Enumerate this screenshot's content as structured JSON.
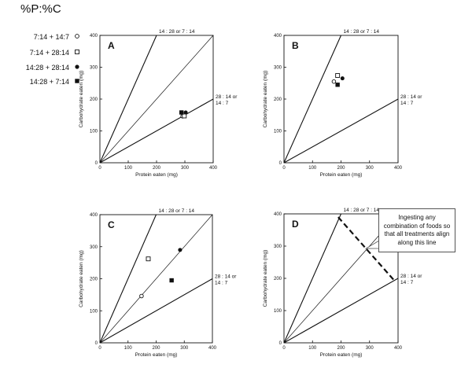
{
  "legend": {
    "title": "%P:%C",
    "items": [
      {
        "label": "7:14 + 14:7",
        "marker": "open-circle"
      },
      {
        "label": "7:14 + 28:14",
        "marker": "open-square"
      },
      {
        "label": "14:28 + 28:14",
        "marker": "filled-circle"
      },
      {
        "label": "14:28 + 7:14",
        "marker": "filled-square"
      }
    ]
  },
  "callout": {
    "text": "Ingesting any combination of foods so that all treatments align along this line"
  },
  "chart_data": [
    {
      "type": "scatter",
      "panel_label": "A",
      "xlabel": "Protein eaten (mg)",
      "ylabel": "Carbohydrate eaten (mg)",
      "xlim": [
        0,
        400
      ],
      "ylim": [
        0,
        400
      ],
      "xticks": [
        "0",
        "100",
        "200",
        "300",
        "400"
      ],
      "yticks": [
        "0",
        "100",
        "200",
        "300",
        "400"
      ],
      "guide_lines": [
        {
          "slope": 2,
          "label": "14 : 28 or 7 : 14"
        },
        {
          "slope": 1,
          "label": ""
        },
        {
          "slope": 0.5,
          "label": "28 : 14 or 14 : 7"
        }
      ],
      "series": [
        {
          "name": "7:14 + 14:7",
          "marker": "open-circle",
          "points": [
            [
              292,
              146
            ]
          ]
        },
        {
          "name": "7:14 + 28:14",
          "marker": "open-square",
          "points": [
            [
              298,
              147
            ]
          ]
        },
        {
          "name": "14:28 + 28:14",
          "marker": "filled-circle",
          "points": [
            [
              303,
              158
            ]
          ]
        },
        {
          "name": "14:28 + 7:14",
          "marker": "filled-square",
          "points": [
            [
              288,
              158
            ]
          ]
        }
      ]
    },
    {
      "type": "scatter",
      "panel_label": "B",
      "xlabel": "Protein eaten (mg)",
      "ylabel": "Carbohydrate eaten (mg)",
      "xlim": [
        0,
        400
      ],
      "ylim": [
        0,
        400
      ],
      "xticks": [
        "0",
        "100",
        "200",
        "300",
        "400"
      ],
      "yticks": [
        "0",
        "100",
        "200",
        "300",
        "400"
      ],
      "guide_lines": [
        {
          "slope": 2,
          "label": "14 : 28 or 7 : 14"
        },
        {
          "slope": 0.5,
          "label": "28 : 14 or 14 : 7"
        }
      ],
      "series": [
        {
          "name": "7:14 + 14:7",
          "marker": "open-circle",
          "points": [
            [
              175,
              255
            ]
          ]
        },
        {
          "name": "7:14 + 28:14",
          "marker": "open-square",
          "points": [
            [
              188,
              274
            ]
          ]
        },
        {
          "name": "14:28 + 28:14",
          "marker": "filled-circle",
          "points": [
            [
              205,
              265
            ]
          ]
        },
        {
          "name": "14:28 + 7:14",
          "marker": "filled-square",
          "points": [
            [
              188,
              245
            ]
          ]
        }
      ]
    },
    {
      "type": "scatter",
      "panel_label": "C",
      "xlabel": "Protein eaten (mg)",
      "ylabel": "Carbohydrate eaten (mg)",
      "xlim": [
        0,
        400
      ],
      "ylim": [
        0,
        400
      ],
      "xticks": [
        "0",
        "100",
        "200",
        "300",
        "400"
      ],
      "yticks": [
        "0",
        "100",
        "200",
        "300",
        "400"
      ],
      "guide_lines": [
        {
          "slope": 2,
          "label": "14 : 28 or 7 : 14"
        },
        {
          "slope": 1,
          "label": ""
        },
        {
          "slope": 0.5,
          "label": "28 : 14 or 14 : 7"
        }
      ],
      "series": [
        {
          "name": "7:14 + 14:7",
          "marker": "open-circle",
          "points": [
            [
              148,
              146
            ]
          ]
        },
        {
          "name": "7:14 + 28:14",
          "marker": "open-square",
          "points": [
            [
              172,
              262
            ]
          ]
        },
        {
          "name": "14:28 + 28:14",
          "marker": "filled-circle",
          "points": [
            [
              285,
              290
            ]
          ]
        },
        {
          "name": "14:28 + 7:14",
          "marker": "filled-square",
          "points": [
            [
              255,
              195
            ]
          ]
        }
      ]
    },
    {
      "type": "scatter",
      "panel_label": "D",
      "xlabel": "Protein eaten (mg)",
      "ylabel": "Carbohydrate eaten (mg)",
      "xlim": [
        0,
        400
      ],
      "ylim": [
        0,
        400
      ],
      "xticks": [
        "0",
        "100",
        "200",
        "300",
        "400"
      ],
      "yticks": [
        "0",
        "100",
        "200",
        "300",
        "400"
      ],
      "guide_lines": [
        {
          "slope": 2,
          "label": "14 : 28 or 7 : 14"
        },
        {
          "slope": 1,
          "label": ""
        },
        {
          "slope": 0.5,
          "label": "28 : 14 or 14 : 7"
        }
      ],
      "dashed_line": [
        [
          190,
          390
        ],
        [
          385,
          195
        ]
      ],
      "series": []
    }
  ]
}
